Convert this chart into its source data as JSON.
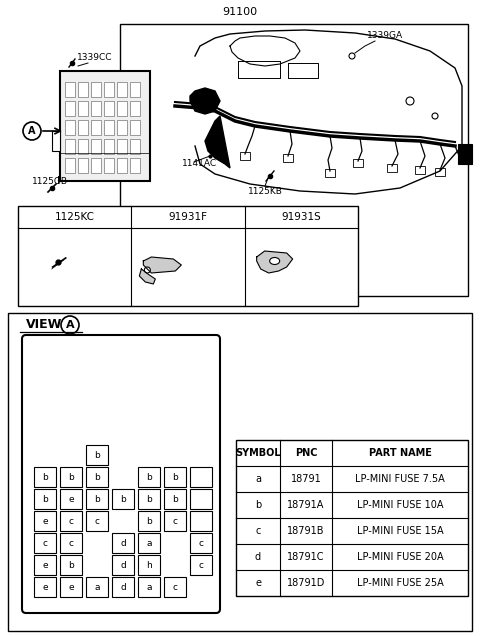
{
  "bg_color": "#ffffff",
  "fig_w": 4.8,
  "fig_h": 6.36,
  "title": "91100",
  "parts_headers": [
    "1125KC",
    "91931F",
    "91931S"
  ],
  "symbol_headers": [
    "SYMBOL",
    "PNC",
    "PART NAME"
  ],
  "symbol_rows": [
    [
      "a",
      "18791",
      "LP-MINI FUSE 7.5A"
    ],
    [
      "b",
      "18791A",
      "LP-MINI FUSE 10A"
    ],
    [
      "c",
      "18791B",
      "LP-MINI FUSE 15A"
    ],
    [
      "d",
      "18791C",
      "LP-MINI FUSE 20A"
    ],
    [
      "e",
      "18791D",
      "LP-MINI FUSE 25A"
    ]
  ],
  "fuse_cells": [
    [
      2,
      0,
      "b"
    ],
    [
      0,
      1,
      "b"
    ],
    [
      1,
      1,
      "b"
    ],
    [
      2,
      1,
      "b"
    ],
    [
      4,
      1,
      "b"
    ],
    [
      5,
      1,
      "b"
    ],
    [
      6,
      1,
      ""
    ],
    [
      0,
      2,
      "b"
    ],
    [
      1,
      2,
      "e"
    ],
    [
      2,
      2,
      "b"
    ],
    [
      3,
      2,
      "b"
    ],
    [
      4,
      2,
      "b"
    ],
    [
      5,
      2,
      "b"
    ],
    [
      6,
      2,
      ""
    ],
    [
      0,
      3,
      "e"
    ],
    [
      1,
      3,
      "c"
    ],
    [
      2,
      3,
      "c"
    ],
    [
      4,
      3,
      "b"
    ],
    [
      5,
      3,
      "c"
    ],
    [
      6,
      3,
      ""
    ],
    [
      0,
      4,
      "c"
    ],
    [
      1,
      4,
      "c"
    ],
    [
      3,
      4,
      "d"
    ],
    [
      4,
      4,
      "a"
    ],
    [
      6,
      4,
      "c"
    ],
    [
      0,
      5,
      "e"
    ],
    [
      1,
      5,
      "b"
    ],
    [
      3,
      5,
      "d"
    ],
    [
      4,
      5,
      "h"
    ],
    [
      6,
      5,
      "c"
    ],
    [
      0,
      6,
      "e"
    ],
    [
      1,
      6,
      "e"
    ],
    [
      2,
      6,
      "a"
    ],
    [
      3,
      6,
      "d"
    ],
    [
      4,
      6,
      "a"
    ],
    [
      5,
      6,
      "c"
    ]
  ]
}
